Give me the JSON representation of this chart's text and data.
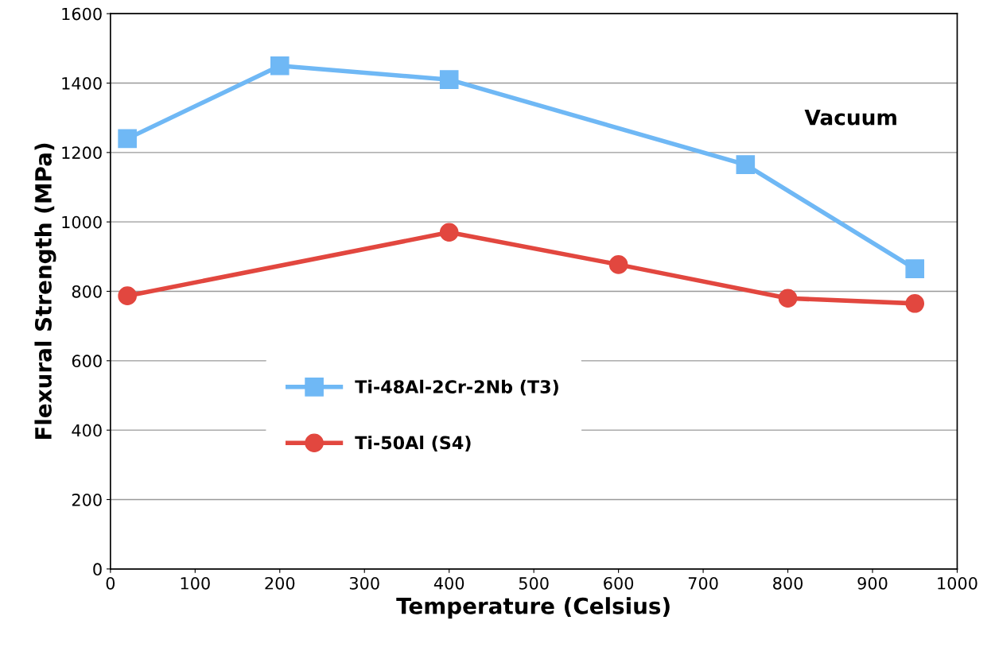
{
  "chart_data": {
    "type": "line",
    "xlabel": "Temperature (Celsius)",
    "ylabel": "Flexural Strength (MPa)",
    "annotations": [
      "Vacuum"
    ],
    "xlim": [
      0,
      1000
    ],
    "xticks": [
      0,
      100,
      200,
      300,
      400,
      500,
      600,
      700,
      800,
      900,
      1000
    ],
    "ylim": [
      0,
      1600
    ],
    "yticks": [
      0,
      200,
      400,
      600,
      800,
      1000,
      1200,
      1400,
      1600
    ],
    "grid": "y",
    "legend": "center",
    "line_style": "solid",
    "series": [
      {
        "name": "Ti-48Al-2Cr-2Nb (T3)",
        "color": "#6fb8f5",
        "marker": "square",
        "x": [
          20,
          200,
          400,
          750,
          950
        ],
        "values": [
          1240,
          1450,
          1410,
          1165,
          865
        ]
      },
      {
        "name": "Ti-50Al (S4)",
        "color": "#e2473f",
        "marker": "circle",
        "x": [
          20,
          400,
          600,
          800,
          950
        ],
        "values": [
          787,
          970,
          877,
          780,
          765
        ]
      }
    ]
  }
}
